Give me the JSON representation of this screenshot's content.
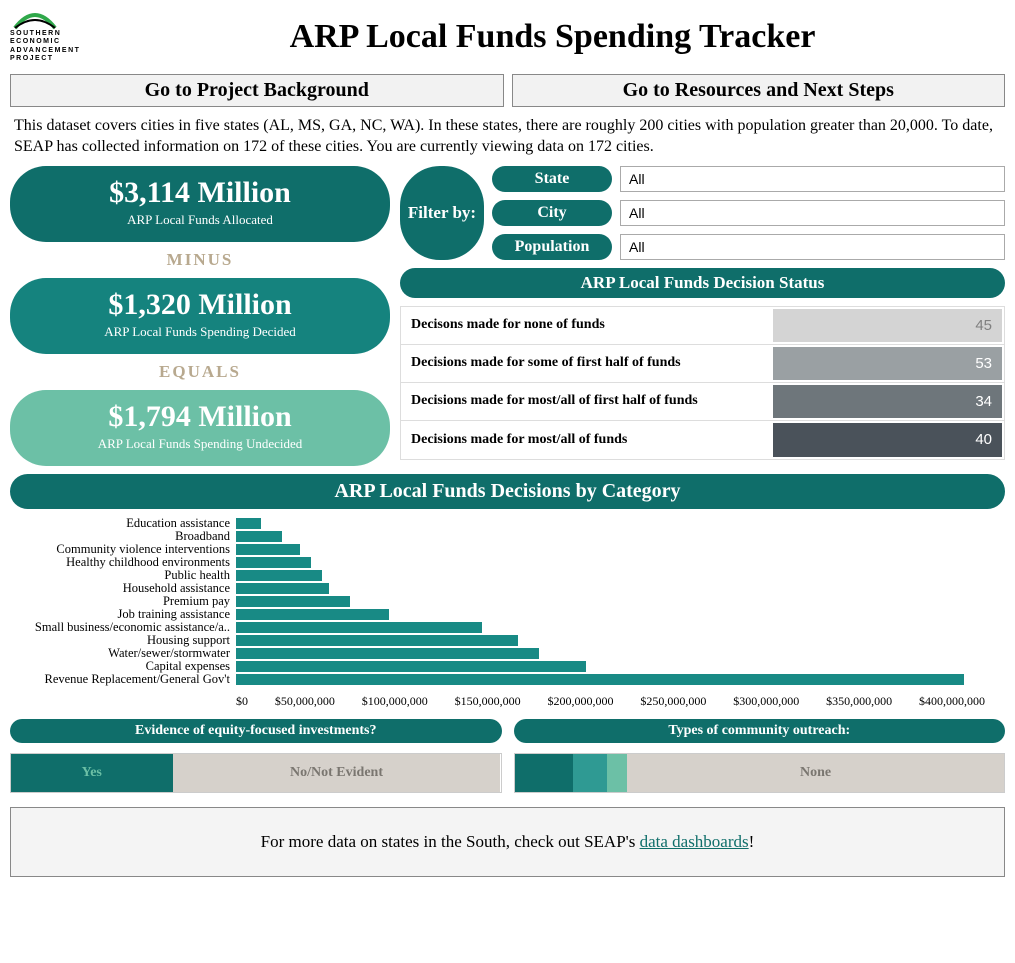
{
  "logo": {
    "org": "SOUTHERN\nECONOMIC\nADVANCEMENT\nPROJECT",
    "arc_color": "#2fa84a"
  },
  "title": "ARP Local Funds Spending Tracker",
  "nav": {
    "background": "Go to Project Background",
    "resources": "Go to Resources and Next Steps"
  },
  "intro": "This dataset covers cities in five states (AL, MS, GA, NC, WA).  In these states, there are roughly 200 cities with population greater than 20,000.  To date, SEAP has collected information on 172 of these cities.  You are currently viewing data on 172 cities.",
  "metrics": {
    "allocated": {
      "value": "$3,114 Million",
      "label": "ARP Local Funds Allocated",
      "color": "#0f6e6a"
    },
    "minus": "MINUS",
    "decided": {
      "value": "$1,320 Million",
      "label": "ARP Local Funds Spending Decided",
      "color": "#15837e"
    },
    "equals": "EQUALS",
    "undecided": {
      "value": "$1,794 Million",
      "label": "ARP Local Funds Spending Undecided",
      "color": "#6cc0a6"
    }
  },
  "filters": {
    "by": "Filter by:",
    "state": {
      "label": "State",
      "value": "All"
    },
    "city": {
      "label": "City",
      "value": "All"
    },
    "population": {
      "label": "Population",
      "value": "All"
    }
  },
  "status": {
    "title": "ARP Local Funds Decision Status",
    "rows": [
      {
        "label": "Decisons made for none of funds",
        "value": 45,
        "color": "#d4d4d4",
        "text": "#808080"
      },
      {
        "label": "Decisions made for some of first half of funds",
        "value": 53,
        "color": "#9aa0a3",
        "text": "#ffffff"
      },
      {
        "label": "Decisions made for most/all of first half of funds",
        "value": 34,
        "color": "#6e767b",
        "text": "#ffffff"
      },
      {
        "label": "Decisions made for most/all of funds",
        "value": 40,
        "color": "#4a525a",
        "text": "#ffffff"
      }
    ]
  },
  "category_chart": {
    "title": "ARP Local Funds Decisions by Category",
    "bar_color": "#188a85",
    "xmax": 420000000,
    "ticks": [
      "$0",
      "$50,000,000",
      "$100,000,000",
      "$150,000,000",
      "$200,000,000",
      "$250,000,000",
      "$300,000,000",
      "$350,000,000",
      "$400,000,000"
    ],
    "items": [
      {
        "label": "Education assistance",
        "value": 14000000
      },
      {
        "label": "Broadband",
        "value": 26000000
      },
      {
        "label": "Community violence interventions",
        "value": 36000000
      },
      {
        "label": "Healthy childhood environments",
        "value": 42000000
      },
      {
        "label": "Public health",
        "value": 48000000
      },
      {
        "label": "Household assistance",
        "value": 52000000
      },
      {
        "label": "Premium pay",
        "value": 64000000
      },
      {
        "label": "Job training assistance",
        "value": 86000000
      },
      {
        "label": "Small business/economic assistance/a..",
        "value": 138000000
      },
      {
        "label": "Housing support",
        "value": 158000000
      },
      {
        "label": "Water/sewer/stormwater",
        "value": 170000000
      },
      {
        "label": "Capital expenses",
        "value": 196000000
      },
      {
        "label": "Revenue Replacement/General Gov't",
        "value": 408000000
      }
    ]
  },
  "equity": {
    "title": "Evidence of equity-focused investments?",
    "segments": [
      {
        "label": "Yes",
        "pct": 33,
        "bg": "#0f6e6a",
        "fg": "#6cc0a6"
      },
      {
        "label": "No/Not Evident",
        "pct": 67,
        "bg": "#d6d1cb",
        "fg": "#7a7670"
      }
    ]
  },
  "outreach": {
    "title": "Types of community outreach:",
    "segments": [
      {
        "label": "",
        "pct": 12,
        "bg": "#0f6e6a",
        "fg": "#ffffff"
      },
      {
        "label": "",
        "pct": 7,
        "bg": "#2f9a93",
        "fg": "#ffffff"
      },
      {
        "label": "",
        "pct": 4,
        "bg": "#6cc0a6",
        "fg": "#ffffff"
      },
      {
        "label": "None",
        "pct": 77,
        "bg": "#d6d1cb",
        "fg": "#7a7670"
      }
    ]
  },
  "footer": {
    "text_pre": "For more data on states in the South, check out SEAP's ",
    "link": "data dashboards",
    "text_post": "!"
  }
}
